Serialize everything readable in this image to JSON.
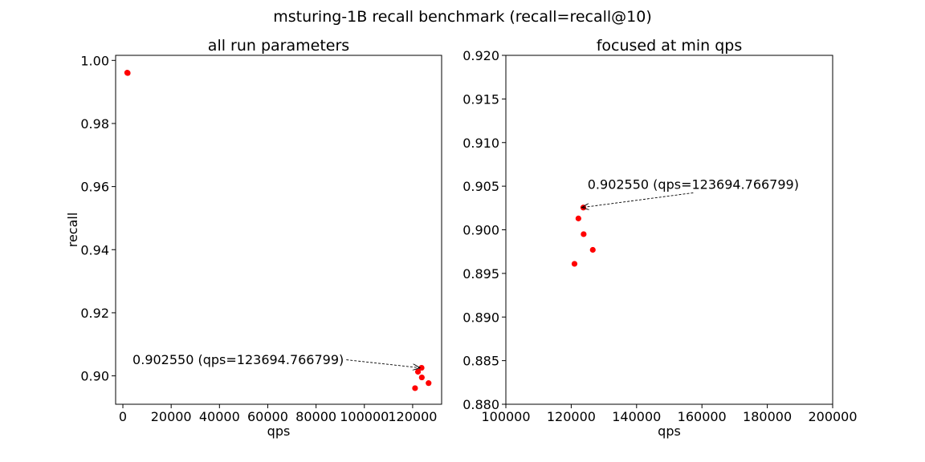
{
  "suptitle": "msturing-1B recall benchmark (recall=recall@10)",
  "point_color": "#ff0000",
  "chart_data": [
    {
      "type": "scatter",
      "title": "all run parameters",
      "xlabel": "qps",
      "ylabel": "recall",
      "xlim": [
        -3000,
        132000
      ],
      "ylim": [
        0.891,
        1.0016
      ],
      "xticks": [
        0,
        20000,
        40000,
        60000,
        80000,
        100000,
        120000
      ],
      "xtick_labels": [
        "0",
        "20000",
        "40000",
        "60000",
        "80000",
        "100000",
        "120000"
      ],
      "yticks": [
        0.9,
        0.92,
        0.94,
        0.96,
        0.98,
        1.0
      ],
      "ytick_labels": [
        "0.90",
        "0.92",
        "0.94",
        "0.96",
        "0.98",
        "1.00"
      ],
      "grid": false,
      "points": [
        {
          "x": 1800,
          "y": 0.9961
        },
        {
          "x": 2000,
          "y": 0.996
        },
        {
          "x": 121000,
          "y": 0.8961
        },
        {
          "x": 122200,
          "y": 0.9013
        },
        {
          "x": 123695,
          "y": 0.90255
        },
        {
          "x": 123800,
          "y": 0.8995
        },
        {
          "x": 126600,
          "y": 0.8977
        }
      ],
      "annotation": {
        "text": "0.902550 (qps=123694.766799)",
        "x": 123695,
        "y": 0.90255,
        "text_x": 4000,
        "text_y": 0.9037
      }
    },
    {
      "type": "scatter",
      "title": "focused at min qps",
      "xlabel": "qps",
      "ylabel": "",
      "xlim": [
        100000,
        200000
      ],
      "ylim": [
        0.88,
        0.92
      ],
      "xticks": [
        100000,
        120000,
        140000,
        160000,
        180000,
        200000
      ],
      "xtick_labels": [
        "100000",
        "120000",
        "140000",
        "160000",
        "180000",
        "200000"
      ],
      "yticks": [
        0.88,
        0.885,
        0.89,
        0.895,
        0.9,
        0.905,
        0.91,
        0.915,
        0.92
      ],
      "ytick_labels": [
        "0.880",
        "0.885",
        "0.890",
        "0.895",
        "0.900",
        "0.905",
        "0.910",
        "0.915",
        "0.920"
      ],
      "grid": false,
      "points": [
        {
          "x": 121000,
          "y": 0.8961
        },
        {
          "x": 122200,
          "y": 0.9013
        },
        {
          "x": 123695,
          "y": 0.90255
        },
        {
          "x": 123800,
          "y": 0.8995
        },
        {
          "x": 126600,
          "y": 0.8977
        }
      ],
      "annotation": {
        "text": "0.902550 (qps=123694.766799)",
        "x": 123695,
        "y": 0.90255,
        "text_x": 125000,
        "text_y": 0.9047
      }
    }
  ]
}
